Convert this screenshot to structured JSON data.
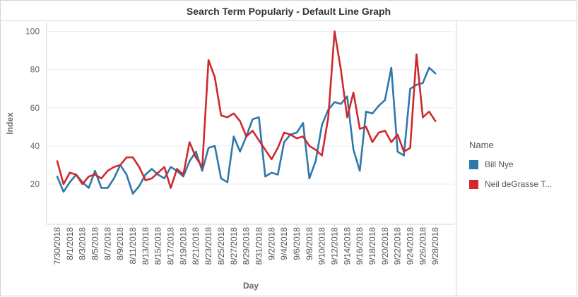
{
  "header": {
    "title": "Search Term Populariy - Default Line Graph"
  },
  "legend": {
    "title": "Name",
    "items": [
      {
        "label": "Bill Nye",
        "color": "#2e78ab"
      },
      {
        "label": "Neil deGrasse T...",
        "color": "#d0282c"
      }
    ]
  },
  "chart_data": {
    "type": "line",
    "xlabel": "Day",
    "ylabel": "Index",
    "ylim": [
      0,
      100
    ],
    "yticks": [
      20,
      40,
      60,
      80,
      100
    ],
    "grid": true,
    "legend_position": "right",
    "x": [
      "7/30/2018",
      "7/31/2018",
      "8/1/2018",
      "8/2/2018",
      "8/3/2018",
      "8/4/2018",
      "8/5/2018",
      "8/6/2018",
      "8/7/2018",
      "8/8/2018",
      "8/9/2018",
      "8/10/2018",
      "8/11/2018",
      "8/12/2018",
      "8/13/2018",
      "8/14/2018",
      "8/15/2018",
      "8/16/2018",
      "8/17/2018",
      "8/18/2018",
      "8/19/2018",
      "8/20/2018",
      "8/21/2018",
      "8/22/2018",
      "8/23/2018",
      "8/24/2018",
      "8/25/2018",
      "8/26/2018",
      "8/27/2018",
      "8/28/2018",
      "8/29/2018",
      "8/30/2018",
      "8/31/2018",
      "9/1/2018",
      "9/2/2018",
      "9/3/2018",
      "9/4/2018",
      "9/5/2018",
      "9/6/2018",
      "9/7/2018",
      "9/8/2018",
      "9/9/2018",
      "9/10/2018",
      "9/11/2018",
      "9/12/2018",
      "9/13/2018",
      "9/14/2018",
      "9/15/2018",
      "9/16/2018",
      "9/17/2018",
      "9/18/2018",
      "9/19/2018",
      "9/20/2018",
      "9/21/2018",
      "9/22/2018",
      "9/23/2018",
      "9/24/2018",
      "9/25/2018",
      "9/26/2018",
      "9/27/2018",
      "9/28/2018",
      "9/29/2018"
    ],
    "xticks": [
      "7/30/2018",
      "8/1/2018",
      "8/3/2018",
      "8/5/2018",
      "8/7/2018",
      "8/9/2018",
      "8/11/2018",
      "8/13/2018",
      "8/15/2018",
      "8/17/2018",
      "8/19/2018",
      "8/21/2018",
      "8/23/2018",
      "8/25/2018",
      "8/27/2018",
      "8/29/2018",
      "8/31/2018",
      "9/2/2018",
      "9/4/2018",
      "9/6/2018",
      "9/8/2018",
      "9/10/2018",
      "9/12/2018",
      "9/14/2018",
      "9/16/2018",
      "9/18/2018",
      "9/20/2018",
      "9/22/2018",
      "9/24/2018",
      "9/26/2018",
      "9/28/2018"
    ],
    "series": [
      {
        "name": "Bill Nye",
        "color": "#2e78ab",
        "values": [
          24,
          16,
          21,
          25,
          21,
          18,
          27,
          18,
          18,
          23,
          30,
          25,
          15,
          19,
          25,
          28,
          25,
          23,
          29,
          27,
          24,
          32,
          37,
          27,
          39,
          40,
          23,
          21,
          45,
          37,
          45,
          54,
          55,
          24,
          26,
          25,
          42,
          46,
          47,
          52,
          23,
          32,
          51,
          59,
          63,
          62,
          66,
          38,
          27,
          58,
          57,
          61,
          64,
          81,
          37,
          35,
          70,
          72,
          73,
          81,
          78,
          null
        ]
      },
      {
        "name": "Neil deGrasse T...",
        "color": "#d0282c",
        "values": [
          32,
          20,
          26,
          25,
          20,
          24,
          25,
          23,
          27,
          29,
          30,
          34,
          34,
          29,
          22,
          23,
          26,
          29,
          18,
          28,
          25,
          42,
          34,
          29,
          85,
          76,
          56,
          55,
          57,
          53,
          45,
          48,
          43,
          38,
          33,
          39,
          47,
          46,
          44,
          45,
          40,
          38,
          35,
          55,
          100,
          80,
          55,
          68,
          49,
          50,
          42,
          47,
          48,
          42,
          46,
          37,
          39,
          88,
          55,
          58,
          53,
          null
        ]
      }
    ]
  }
}
